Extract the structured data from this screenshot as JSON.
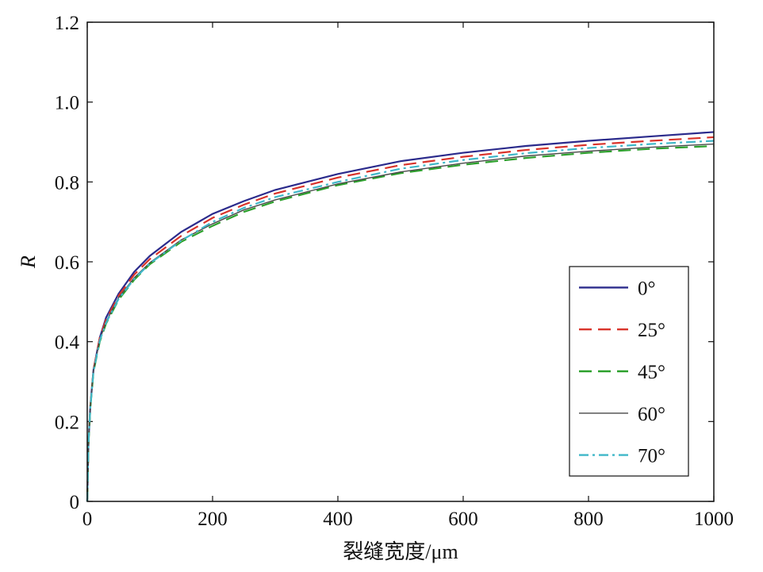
{
  "chart_data": {
    "type": "line",
    "title": "",
    "xlabel": "裂缝宽度/μm",
    "ylabel": "R",
    "xlim": [
      0,
      1000
    ],
    "ylim": [
      0,
      1.2
    ],
    "x_ticks": [
      0,
      200,
      400,
      600,
      800,
      1000
    ],
    "y_ticks": [
      0,
      0.2,
      0.4,
      0.6,
      0.8,
      1.0,
      1.2
    ],
    "x_tick_labels": [
      "0",
      "200",
      "400",
      "600",
      "800",
      "1000"
    ],
    "y_tick_labels": [
      "0",
      "0.2",
      "0.4",
      "0.6",
      "0.8",
      "1.0",
      "1.2"
    ],
    "grid": false,
    "legend_position": "lower-right",
    "x": [
      0,
      2,
      5,
      10,
      20,
      30,
      50,
      75,
      100,
      150,
      200,
      250,
      300,
      400,
      500,
      600,
      700,
      800,
      900,
      1000
    ],
    "series": [
      {
        "name": "0°",
        "color": "#2b2b8c",
        "dash": "solid",
        "values": [
          0,
          0.15,
          0.24,
          0.33,
          0.41,
          0.46,
          0.52,
          0.575,
          0.615,
          0.675,
          0.72,
          0.752,
          0.78,
          0.82,
          0.852,
          0.873,
          0.89,
          0.903,
          0.914,
          0.925
        ]
      },
      {
        "name": "25°",
        "color": "#d9342b",
        "dash": "dashed",
        "values": [
          0,
          0.15,
          0.24,
          0.33,
          0.41,
          0.455,
          0.515,
          0.568,
          0.607,
          0.665,
          0.71,
          0.743,
          0.771,
          0.811,
          0.842,
          0.863,
          0.88,
          0.893,
          0.903,
          0.912
        ]
      },
      {
        "name": "45°",
        "color": "#2ca02c",
        "dash": "dashed",
        "values": [
          0,
          0.145,
          0.235,
          0.325,
          0.4,
          0.445,
          0.505,
          0.555,
          0.594,
          0.65,
          0.69,
          0.725,
          0.751,
          0.792,
          0.822,
          0.843,
          0.86,
          0.873,
          0.883,
          0.89
        ]
      },
      {
        "name": "60°",
        "color": "#4a4a4a",
        "dash": "solid",
        "values": [
          0,
          0.148,
          0.238,
          0.328,
          0.405,
          0.45,
          0.51,
          0.56,
          0.598,
          0.655,
          0.695,
          0.73,
          0.755,
          0.795,
          0.825,
          0.847,
          0.865,
          0.877,
          0.887,
          0.895
        ]
      },
      {
        "name": "70°",
        "color": "#3fb7c8",
        "dash": "dashdot",
        "values": [
          0,
          0.146,
          0.236,
          0.326,
          0.403,
          0.447,
          0.507,
          0.557,
          0.596,
          0.653,
          0.7,
          0.735,
          0.762,
          0.8,
          0.833,
          0.855,
          0.872,
          0.885,
          0.895,
          0.903
        ]
      }
    ]
  }
}
